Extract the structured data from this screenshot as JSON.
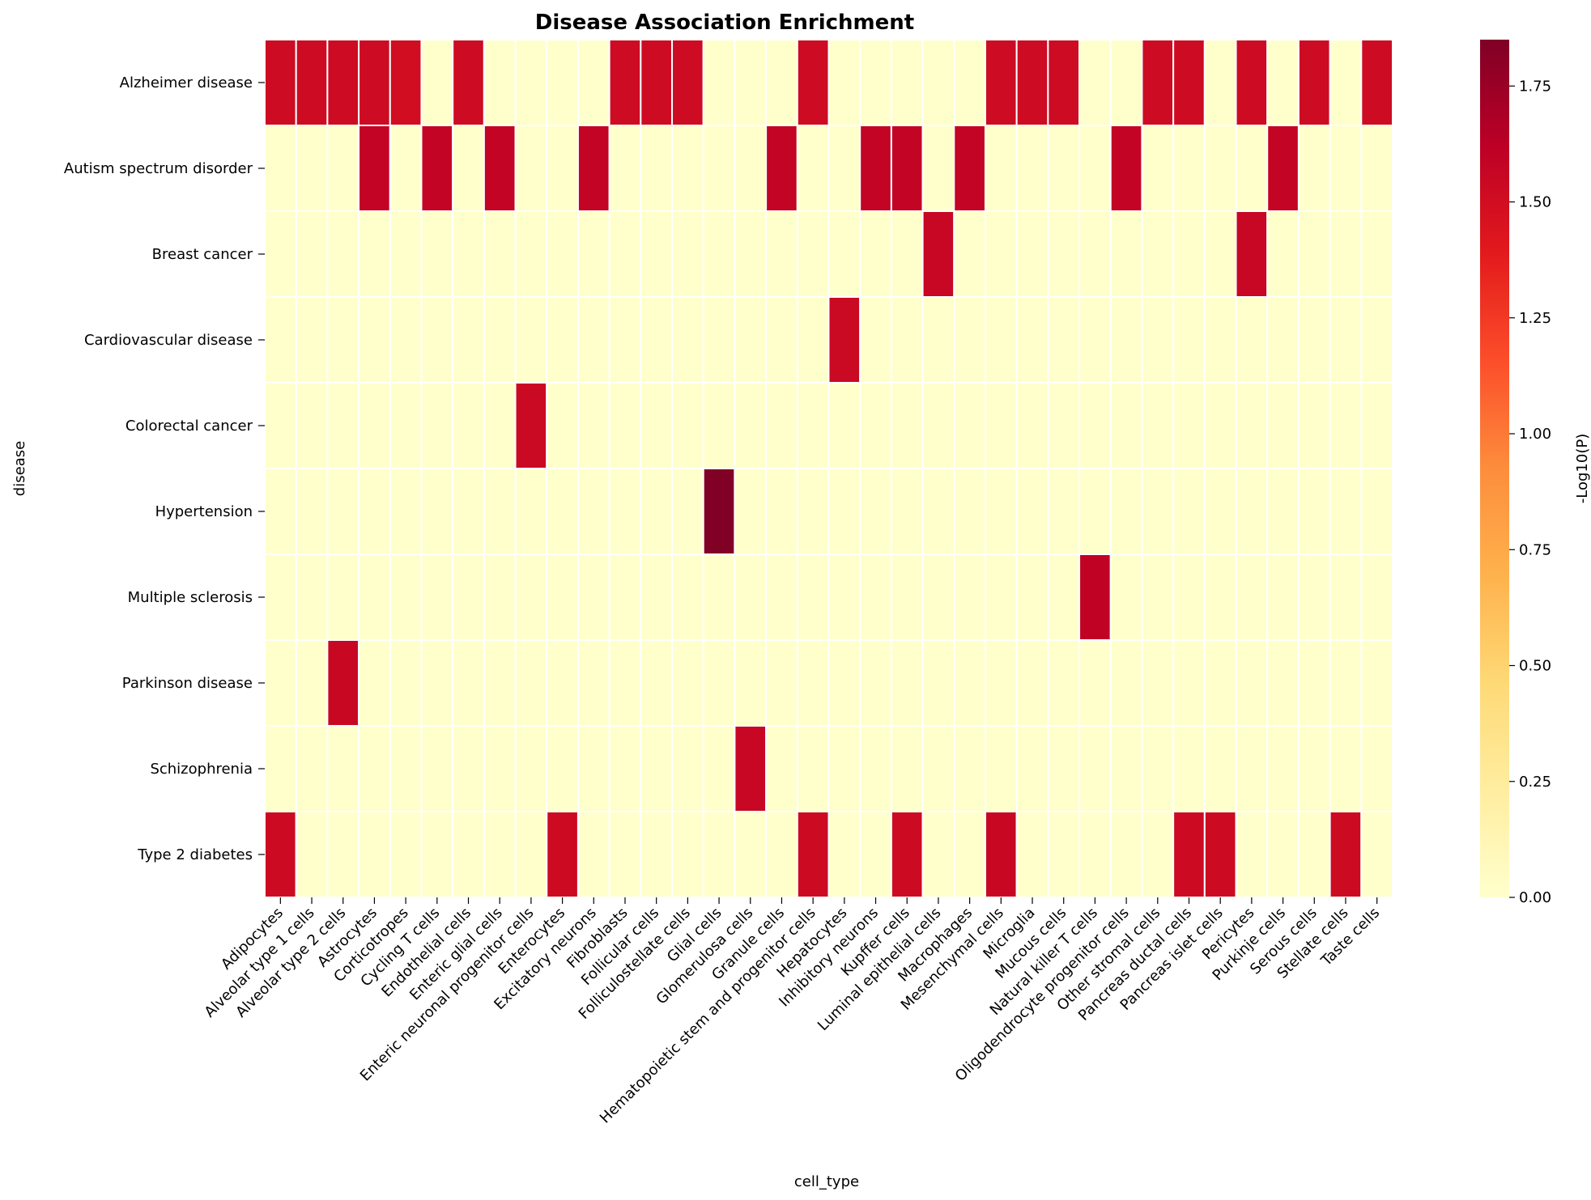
{
  "chart_data": {
    "type": "heatmap",
    "title": "Disease Association Enrichment",
    "xlabel": "cell_type",
    "ylabel": "disease",
    "colorbar_label": "-Log10(P)",
    "colormap": "YlOrRd",
    "colorbar_range": [
      0,
      1.85
    ],
    "colorbar_ticks": [
      "0.00",
      "0.25",
      "0.50",
      "0.75",
      "1.00",
      "1.25",
      "1.50",
      "1.75"
    ],
    "grid_line_color": "#ffffff",
    "x": [
      "Adipocytes",
      "Alveolar type 1 cells",
      "Alveolar type 2 cells",
      "Astrocytes",
      "Corticotropes",
      "Cycling T cells",
      "Endothelial cells",
      "Enteric glial cells",
      "Enteric neuronal progenitor cells",
      "Enterocytes",
      "Excitatory neurons",
      "Fibroblasts",
      "Follicular cells",
      "Folliculostellate cells",
      "Glial cells",
      "Glomerulosa cells",
      "Granule cells",
      "Hematopoietic stem and progenitor cells",
      "Hepatocytes",
      "Inhibitory neurons",
      "Kupffer cells",
      "Luminal epithelial cells",
      "Macrophages",
      "Mesenchymal cells",
      "Microglia",
      "Mucous cells",
      "Natural killer T cells",
      "Oligodendrocyte progenitor cells",
      "Other stromal cells",
      "Pancreas ductal cells",
      "Pancreas islet cells",
      "Pericytes",
      "Purkinje cells",
      "Serous cells",
      "Stellate cells",
      "Taste cells"
    ],
    "y": [
      "Alzheimer disease",
      "Autism spectrum disorder",
      "Breast cancer",
      "Cardiovascular disease",
      "Colorectal cancer",
      "Hypertension",
      "Multiple sclerosis",
      "Parkinson disease",
      "Schizophrenia",
      "Type 2 diabetes"
    ],
    "values": [
      [
        1.52,
        1.52,
        1.52,
        1.52,
        1.5,
        0,
        1.52,
        0,
        0,
        0,
        0,
        1.52,
        1.52,
        1.52,
        0,
        0,
        0,
        1.52,
        0,
        0,
        0,
        0,
        0,
        1.52,
        1.52,
        1.52,
        0,
        0,
        1.52,
        1.52,
        0,
        1.52,
        0,
        1.52,
        0,
        1.52
      ],
      [
        0,
        0,
        0,
        1.58,
        0,
        1.58,
        0,
        1.58,
        0,
        0,
        1.58,
        0,
        0,
        0,
        0,
        0,
        1.58,
        0,
        0,
        1.58,
        1.58,
        0,
        1.58,
        0,
        0,
        0,
        0,
        1.58,
        0,
        0,
        0,
        0,
        1.58,
        0,
        0,
        0
      ],
      [
        0,
        0,
        0,
        0,
        0,
        0,
        0,
        0,
        0,
        0,
        0,
        0,
        0,
        0,
        0,
        0,
        0,
        0,
        0,
        0,
        0,
        1.56,
        0,
        0,
        0,
        0,
        0,
        0,
        0,
        0,
        0,
        1.56,
        0,
        0,
        0,
        0
      ],
      [
        0,
        0,
        0,
        0,
        0,
        0,
        0,
        0,
        0,
        0,
        0,
        0,
        0,
        0,
        0,
        0,
        0,
        0,
        1.54,
        0,
        0,
        0,
        0,
        0,
        0,
        0,
        0,
        0,
        0,
        0,
        0,
        0,
        0,
        0,
        0,
        0
      ],
      [
        0,
        0,
        0,
        0,
        0,
        0,
        0,
        0,
        1.54,
        0,
        0,
        0,
        0,
        0,
        0,
        0,
        0,
        0,
        0,
        0,
        0,
        0,
        0,
        0,
        0,
        0,
        0,
        0,
        0,
        0,
        0,
        0,
        0,
        0,
        0,
        0
      ],
      [
        0,
        0,
        0,
        0,
        0,
        0,
        0,
        0,
        0,
        0,
        0,
        0,
        0,
        0,
        1.85,
        0,
        0,
        0,
        0,
        0,
        0,
        0,
        0,
        0,
        0,
        0,
        0,
        0,
        0,
        0,
        0,
        0,
        0,
        0,
        0,
        0
      ],
      [
        0,
        0,
        0,
        0,
        0,
        0,
        0,
        0,
        0,
        0,
        0,
        0,
        0,
        0,
        0,
        0,
        0,
        0,
        0,
        0,
        0,
        0,
        0,
        0,
        0,
        0,
        1.6,
        0,
        0,
        0,
        0,
        0,
        0,
        0,
        0,
        0
      ],
      [
        0,
        0,
        1.55,
        0,
        0,
        0,
        0,
        0,
        0,
        0,
        0,
        0,
        0,
        0,
        0,
        0,
        0,
        0,
        0,
        0,
        0,
        0,
        0,
        0,
        0,
        0,
        0,
        0,
        0,
        0,
        0,
        0,
        0,
        0,
        0,
        0
      ],
      [
        0,
        0,
        0,
        0,
        0,
        0,
        0,
        0,
        0,
        0,
        0,
        0,
        0,
        0,
        0,
        1.56,
        0,
        0,
        0,
        0,
        0,
        0,
        0,
        0,
        0,
        0,
        0,
        0,
        0,
        0,
        0,
        0,
        0,
        0,
        0,
        0
      ],
      [
        1.53,
        0,
        0,
        0,
        0,
        0,
        0,
        0,
        0,
        1.53,
        0,
        0,
        0,
        0,
        0,
        0,
        0,
        1.53,
        0,
        0,
        1.53,
        0,
        0,
        1.55,
        0,
        0,
        0,
        0,
        0,
        1.53,
        1.53,
        0,
        0,
        0,
        1.53,
        0
      ]
    ]
  }
}
